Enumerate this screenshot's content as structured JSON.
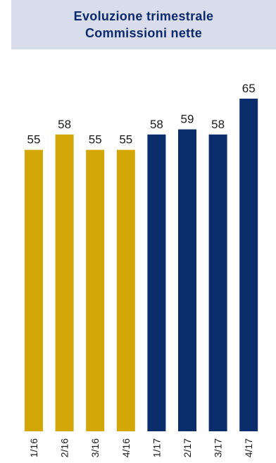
{
  "header": {
    "title_line1": "Evoluzione trimestrale",
    "title_line2": "Commissioni nette"
  },
  "colors": {
    "series_2016": "#d3a707",
    "series_2017": "#0b2d6b",
    "title_bg": "#d9dceb",
    "title_text": "#0b2a6b"
  },
  "chart_data": {
    "type": "bar",
    "title": "Evoluzione trimestrale Commissioni nette",
    "xlabel": "",
    "ylabel": "",
    "ylim": [
      0,
      65
    ],
    "grid": false,
    "categories": [
      "1/16",
      "2/16",
      "3/16",
      "4/16",
      "1/17",
      "2/17",
      "3/17",
      "4/17"
    ],
    "values": [
      55,
      58,
      55,
      55,
      58,
      59,
      58,
      65
    ],
    "bar_colors": [
      "#d3a707",
      "#d3a707",
      "#d3a707",
      "#d3a707",
      "#0b2d6b",
      "#0b2d6b",
      "#0b2d6b",
      "#0b2d6b"
    ]
  }
}
